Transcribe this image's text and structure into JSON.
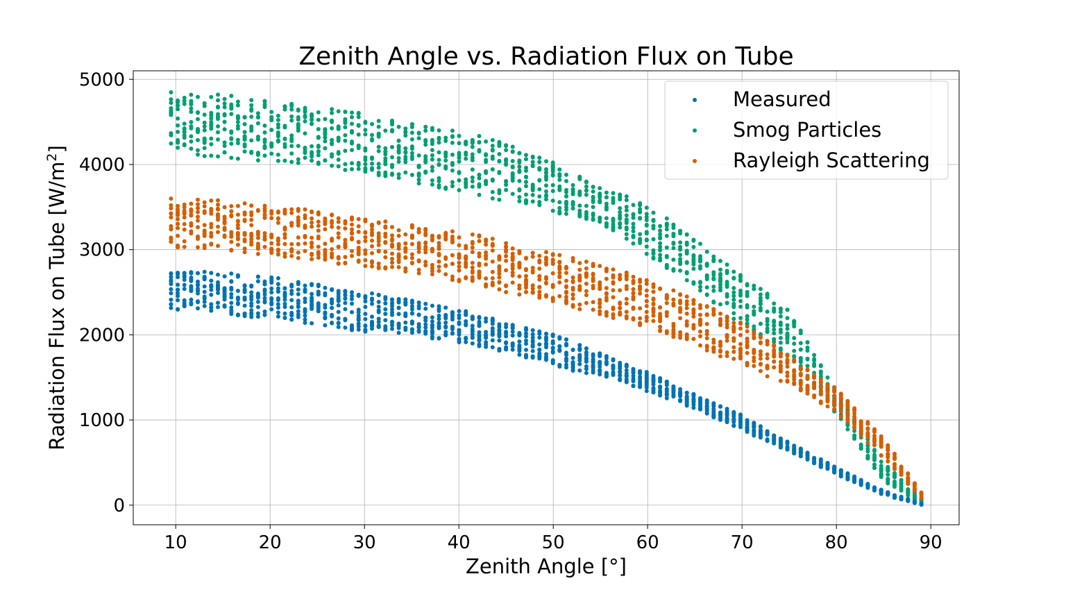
{
  "chart_data": {
    "type": "scatter",
    "title": "Zenith Angle vs. Radiation Flux on Tube",
    "xlabel": "Zenith Angle [°]",
    "ylabel_main": "Radiation Flux on Tube [W/m",
    "ylabel_sup": "2",
    "ylabel_end": "]",
    "xlim": [
      5.5,
      93.0
    ],
    "ylim": [
      -230,
      5100
    ],
    "xticks": [
      10,
      20,
      30,
      40,
      50,
      60,
      70,
      80,
      90
    ],
    "yticks": [
      0,
      1000,
      2000,
      3000,
      4000,
      5000
    ],
    "grid": true,
    "legend_position": "upper-right",
    "x_range_points": [
      9.5,
      89.0
    ],
    "series": [
      {
        "name": "Measured",
        "color": "#0072b2",
        "x": [
          9.5,
          15,
          20,
          25,
          30,
          35,
          40,
          45,
          50,
          55,
          60,
          65,
          70,
          75,
          80,
          85,
          89
        ],
        "y_low": [
          2300,
          2250,
          2180,
          2120,
          2030,
          2000,
          1900,
          1800,
          1620,
          1520,
          1330,
          1130,
          880,
          630,
          360,
          120,
          5
        ],
        "y_high": [
          2740,
          2740,
          2680,
          2600,
          2500,
          2420,
          2300,
          2150,
          2010,
          1780,
          1560,
          1300,
          1060,
          740,
          440,
          170,
          20
        ]
      },
      {
        "name": "Smog Particles",
        "color": "#009e73",
        "x": [
          9.5,
          15,
          20,
          25,
          30,
          35,
          40,
          45,
          50,
          55,
          60,
          65,
          70,
          75,
          80,
          85,
          89
        ],
        "y_low": [
          4120,
          4080,
          4030,
          3980,
          3900,
          3790,
          3680,
          3560,
          3440,
          3320,
          2930,
          2550,
          2110,
          1720,
          1070,
          280,
          10
        ],
        "y_high": [
          4850,
          4820,
          4750,
          4680,
          4600,
          4500,
          4400,
          4250,
          4040,
          3770,
          3530,
          3130,
          2730,
          2300,
          1350,
          500,
          70
        ]
      },
      {
        "name": "Rayleigh Scattering",
        "color": "#d55e00",
        "x": [
          9.5,
          15,
          20,
          25,
          30,
          35,
          40,
          45,
          50,
          55,
          60,
          65,
          70,
          75,
          80,
          85,
          89
        ],
        "y_low": [
          3030,
          3000,
          2930,
          2870,
          2790,
          2730,
          2620,
          2500,
          2380,
          2240,
          2080,
          1880,
          1630,
          1410,
          1080,
          550,
          80
        ],
        "y_high": [
          3600,
          3580,
          3520,
          3460,
          3370,
          3300,
          3220,
          3100,
          2960,
          2820,
          2660,
          2420,
          2140,
          1760,
          1370,
          790,
          150
        ]
      }
    ]
  }
}
